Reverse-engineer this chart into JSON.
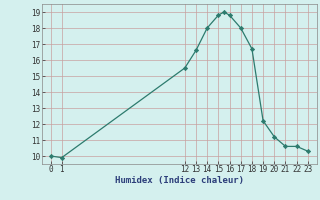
{
  "xlabel": "Humidex (Indice chaleur)",
  "x_values": [
    0,
    1,
    12,
    13,
    14,
    15,
    15.5,
    16,
    17,
    18,
    19,
    20,
    21,
    22,
    23
  ],
  "y_values": [
    10.0,
    9.9,
    15.5,
    16.6,
    18.0,
    18.8,
    19.0,
    18.8,
    18.0,
    16.7,
    12.2,
    11.2,
    10.6,
    10.6,
    10.3
  ],
  "line_color": "#2d7b6e",
  "marker_color": "#2d7b6e",
  "bg_color": "#d4f0ee",
  "grid_color": "#b0d8d4",
  "yticks": [
    10,
    11,
    12,
    13,
    14,
    15,
    16,
    17,
    18,
    19
  ],
  "xticks": [
    0,
    1,
    12,
    13,
    14,
    15,
    16,
    17,
    18,
    19,
    20,
    21,
    22,
    23
  ],
  "xlim": [
    -0.8,
    23.8
  ],
  "ylim": [
    9.5,
    19.5
  ],
  "tick_fontsize": 5.5,
  "xlabel_fontsize": 6.5
}
